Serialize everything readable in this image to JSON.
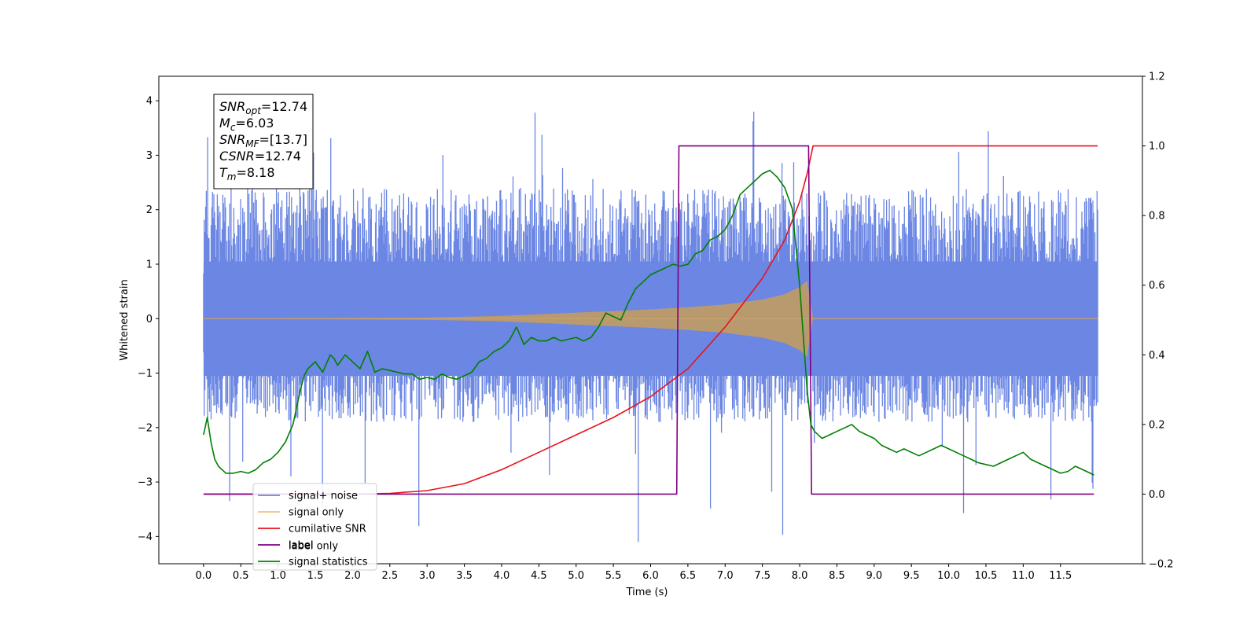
{
  "chart_data": {
    "type": "line",
    "xlabel": "Time (s)",
    "ylabel_left": "Whitened strain",
    "ylabel_right": "",
    "xlim": [
      -0.6,
      12.6
    ],
    "ylim_left": [
      -4.5,
      4.45
    ],
    "ylim_right": [
      -0.2,
      1.2
    ],
    "x_ticks": [
      "0.0",
      "0.5",
      "1.0",
      "1.5",
      "2.0",
      "2.5",
      "3.0",
      "3.5",
      "4.0",
      "4.5",
      "5.0",
      "5.5",
      "6.0",
      "6.5",
      "7.0",
      "7.5",
      "8.0",
      "8.5",
      "9.0",
      "9.5",
      "10.0",
      "10.5",
      "11.0",
      "11.5"
    ],
    "y_left_ticks": [
      "4",
      "3",
      "2",
      "1",
      "0",
      "−1",
      "−2",
      "−3",
      "−4"
    ],
    "y_right_ticks": [
      "1.2",
      "1.0",
      "0.8",
      "0.6",
      "0.4",
      "0.2",
      "0.0",
      "−0.2"
    ],
    "grid": false,
    "legend_location": "lower-left",
    "info_box": {
      "lines": [
        {
          "sym": "SNR",
          "sub": "opt",
          "value": "=12.74"
        },
        {
          "sym": "M",
          "sub": "c",
          "value": "=6.03"
        },
        {
          "sym": "SNR",
          "sub": "MF",
          "value": "=[13.7]"
        },
        {
          "sym": "CSNR",
          "sub": "",
          "value": "=12.74"
        },
        {
          "sym": "T",
          "sub": "m",
          "value": "=8.18"
        }
      ]
    },
    "series": [
      {
        "name": "signal+ noise",
        "axis": "left",
        "color": "#6b86e3",
        "kind": "noise_band",
        "x_range": [
          0,
          12
        ],
        "envelope_upper": 2.4,
        "envelope_lower": -1.9,
        "peak_max": 3.8,
        "peak_min": -4.1
      },
      {
        "name": "signal only",
        "axis": "left",
        "color": "#c8a070",
        "kind": "chirp",
        "x": [
          0,
          3.0,
          4.0,
          5.0,
          6.0,
          6.5,
          7.0,
          7.5,
          7.8,
          8.0,
          8.1,
          8.18
        ],
        "amplitude": [
          0.002,
          0.02,
          0.05,
          0.11,
          0.17,
          0.21,
          0.26,
          0.35,
          0.45,
          0.58,
          0.7,
          0.0
        ]
      },
      {
        "name": "cumilative SNR",
        "axis": "right",
        "color": "#e8121b",
        "x": [
          0,
          2.0,
          2.5,
          3.0,
          3.5,
          4.0,
          4.5,
          5.0,
          5.5,
          6.0,
          6.5,
          7.0,
          7.5,
          7.8,
          8.0,
          8.1,
          8.18,
          12.0
        ],
        "values": [
          0.0,
          0.0,
          0.002,
          0.01,
          0.03,
          0.07,
          0.12,
          0.17,
          0.22,
          0.28,
          0.36,
          0.48,
          0.62,
          0.73,
          0.84,
          0.92,
          1.0,
          1.0
        ]
      },
      {
        "name": "label",
        "axis": "right",
        "color": "#800080",
        "x": [
          0,
          6.35,
          6.38,
          8.12,
          8.16,
          11.95
        ],
        "values": [
          0.0,
          0.0,
          1.0,
          1.0,
          0.0,
          0.0
        ]
      },
      {
        "name": "signal statistics",
        "axis": "right",
        "color": "#008000",
        "x": [
          0.0,
          0.05,
          0.1,
          0.15,
          0.2,
          0.3,
          0.4,
          0.5,
          0.6,
          0.7,
          0.8,
          0.9,
          1.0,
          1.1,
          1.2,
          1.3,
          1.35,
          1.4,
          1.5,
          1.6,
          1.7,
          1.75,
          1.8,
          1.9,
          2.0,
          2.1,
          2.2,
          2.3,
          2.4,
          2.5,
          2.6,
          2.7,
          2.8,
          2.9,
          3.0,
          3.1,
          3.2,
          3.3,
          3.4,
          3.5,
          3.6,
          3.7,
          3.8,
          3.9,
          4.0,
          4.1,
          4.2,
          4.3,
          4.4,
          4.5,
          4.6,
          4.7,
          4.8,
          4.9,
          5.0,
          5.1,
          5.2,
          5.3,
          5.4,
          5.5,
          5.6,
          5.7,
          5.8,
          5.9,
          6.0,
          6.1,
          6.2,
          6.3,
          6.4,
          6.5,
          6.6,
          6.7,
          6.8,
          6.9,
          7.0,
          7.1,
          7.2,
          7.3,
          7.4,
          7.5,
          7.6,
          7.7,
          7.8,
          7.9,
          8.0,
          8.05,
          8.1,
          8.15,
          8.2,
          8.25,
          8.3,
          8.4,
          8.5,
          8.6,
          8.7,
          8.8,
          8.9,
          9.0,
          9.1,
          9.2,
          9.3,
          9.4,
          9.5,
          9.6,
          9.7,
          9.8,
          9.9,
          10.0,
          10.1,
          10.2,
          10.3,
          10.4,
          10.5,
          10.6,
          10.7,
          10.8,
          10.9,
          11.0,
          11.1,
          11.2,
          11.3,
          11.4,
          11.5,
          11.6,
          11.7,
          11.8,
          11.9,
          11.95
        ],
        "values": [
          0.17,
          0.22,
          0.15,
          0.1,
          0.08,
          0.06,
          0.06,
          0.065,
          0.06,
          0.07,
          0.09,
          0.1,
          0.12,
          0.15,
          0.2,
          0.3,
          0.34,
          0.36,
          0.38,
          0.35,
          0.4,
          0.39,
          0.37,
          0.4,
          0.38,
          0.36,
          0.41,
          0.35,
          0.36,
          0.355,
          0.35,
          0.345,
          0.345,
          0.33,
          0.335,
          0.33,
          0.345,
          0.335,
          0.33,
          0.34,
          0.35,
          0.38,
          0.39,
          0.41,
          0.42,
          0.44,
          0.48,
          0.43,
          0.45,
          0.44,
          0.44,
          0.45,
          0.44,
          0.445,
          0.45,
          0.44,
          0.45,
          0.48,
          0.52,
          0.51,
          0.5,
          0.55,
          0.59,
          0.61,
          0.63,
          0.64,
          0.65,
          0.66,
          0.655,
          0.66,
          0.69,
          0.7,
          0.73,
          0.74,
          0.76,
          0.8,
          0.86,
          0.88,
          0.9,
          0.92,
          0.93,
          0.91,
          0.88,
          0.82,
          0.6,
          0.45,
          0.3,
          0.2,
          0.18,
          0.17,
          0.16,
          0.17,
          0.18,
          0.19,
          0.2,
          0.18,
          0.17,
          0.16,
          0.14,
          0.13,
          0.12,
          0.13,
          0.12,
          0.11,
          0.12,
          0.13,
          0.14,
          0.13,
          0.12,
          0.11,
          0.1,
          0.09,
          0.085,
          0.08,
          0.09,
          0.1,
          0.11,
          0.12,
          0.1,
          0.09,
          0.08,
          0.07,
          0.06,
          0.065,
          0.08,
          0.07,
          0.06,
          0.055
        ]
      },
      {
        "name": "label only",
        "axis": "left",
        "color": "#d0d0d0",
        "legend_only": true
      }
    ]
  }
}
